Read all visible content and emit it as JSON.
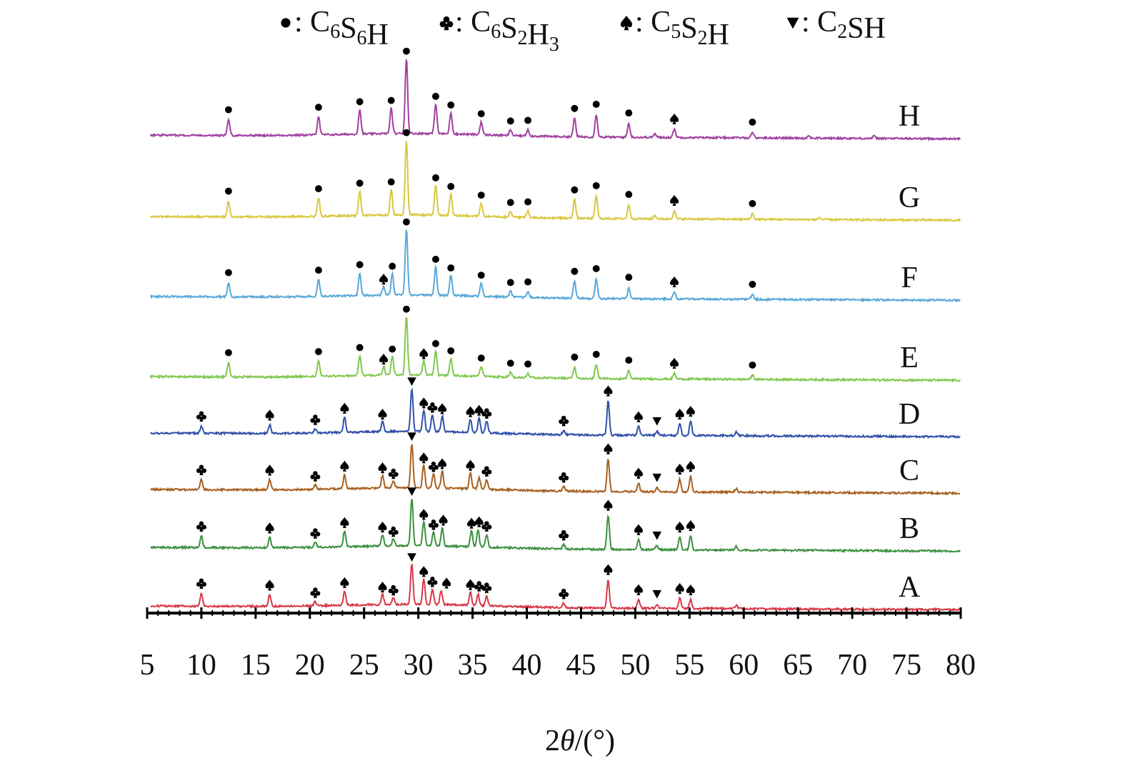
{
  "chart_data": {
    "type": "line",
    "xlabel": "2θ/(°)",
    "xlabel_parts": {
      "prefix": "2",
      "theta": "θ",
      "suffix": "/(°)"
    },
    "xlim": [
      5,
      80
    ],
    "xticks": [
      "5",
      "10",
      "15",
      "20",
      "25",
      "30",
      "35",
      "40",
      "45",
      "50",
      "55",
      "60",
      "65",
      "70",
      "75",
      "80"
    ],
    "grid": false,
    "legend_placement": "top",
    "legend": [
      {
        "id": "C6S6H",
        "marker": "circle",
        "base": "C",
        "n1": "6",
        "mid": "S",
        "n2": "6",
        "end": "H",
        "n3": ""
      },
      {
        "id": "C6S2H3",
        "marker": "club",
        "base": "C",
        "n1": "6",
        "mid": "S",
        "n2": "2",
        "end": "H",
        "n3": "3"
      },
      {
        "id": "C5S2H",
        "marker": "spade",
        "base": "C",
        "n1": "5",
        "mid": "S",
        "n2": "2",
        "end": "H",
        "n3": ""
      },
      {
        "id": "C2SH",
        "marker": "triangle-down",
        "base": "C",
        "n1": "2",
        "mid": "S",
        "n2": "",
        "end": "H",
        "n3": ""
      }
    ],
    "series": [
      {
        "name": "H",
        "color": "#a040a0",
        "peaks": [
          [
            12.5,
            22
          ],
          [
            20.8,
            26
          ],
          [
            24.6,
            34
          ],
          [
            27.5,
            36
          ],
          [
            28.9,
            105
          ],
          [
            31.6,
            42
          ],
          [
            33,
            30
          ],
          [
            35.8,
            18
          ],
          [
            38.5,
            8
          ],
          [
            40.1,
            9
          ],
          [
            44.4,
            26
          ],
          [
            46.4,
            32
          ],
          [
            49.4,
            20
          ],
          [
            51.8,
            5
          ],
          [
            53.6,
            12
          ],
          [
            60.8,
            8
          ],
          [
            66,
            3
          ],
          [
            72,
            3
          ]
        ],
        "markers": [
          [
            12.5,
            "C6S6H"
          ],
          [
            20.8,
            "C6S6H"
          ],
          [
            24.6,
            "C6S6H"
          ],
          [
            27.5,
            "C6S6H"
          ],
          [
            28.9,
            "C6S6H"
          ],
          [
            31.6,
            "C6S6H"
          ],
          [
            33,
            "C6S6H"
          ],
          [
            35.8,
            "C6S6H"
          ],
          [
            38.5,
            "C6S6H"
          ],
          [
            40.1,
            "C6S6H"
          ],
          [
            44.4,
            "C6S6H"
          ],
          [
            46.4,
            "C6S6H"
          ],
          [
            49.4,
            "C6S6H"
          ],
          [
            53.6,
            "C5S2H"
          ],
          [
            60.8,
            "C6S6H"
          ]
        ]
      },
      {
        "name": "G",
        "color": "#d8c840",
        "peaks": [
          [
            12.5,
            22
          ],
          [
            20.8,
            26
          ],
          [
            24.6,
            34
          ],
          [
            27.5,
            36
          ],
          [
            28.9,
            105
          ],
          [
            31.6,
            42
          ],
          [
            33,
            30
          ],
          [
            35.8,
            18
          ],
          [
            38.5,
            8
          ],
          [
            40.1,
            9
          ],
          [
            44.4,
            26
          ],
          [
            46.4,
            32
          ],
          [
            49.4,
            20
          ],
          [
            51.8,
            5
          ],
          [
            53.6,
            12
          ],
          [
            60.8,
            8
          ],
          [
            67,
            3
          ]
        ],
        "markers": [
          [
            12.5,
            "C6S6H"
          ],
          [
            20.8,
            "C6S6H"
          ],
          [
            24.6,
            "C6S6H"
          ],
          [
            27.5,
            "C6S6H"
          ],
          [
            28.9,
            "C6S6H"
          ],
          [
            31.6,
            "C6S6H"
          ],
          [
            33,
            "C6S6H"
          ],
          [
            35.8,
            "C6S6H"
          ],
          [
            38.5,
            "C6S6H"
          ],
          [
            40.1,
            "C6S6H"
          ],
          [
            44.4,
            "C6S6H"
          ],
          [
            46.4,
            "C6S6H"
          ],
          [
            49.4,
            "C6S6H"
          ],
          [
            53.6,
            "C5S2H"
          ],
          [
            60.8,
            "C6S6H"
          ]
        ]
      },
      {
        "name": "F",
        "color": "#5aa8d8",
        "peaks": [
          [
            12.5,
            20
          ],
          [
            20.8,
            24
          ],
          [
            24.6,
            32
          ],
          [
            26.8,
            12
          ],
          [
            27.6,
            30
          ],
          [
            28.9,
            92
          ],
          [
            31.6,
            40
          ],
          [
            33,
            28
          ],
          [
            35.8,
            18
          ],
          [
            38.5,
            8
          ],
          [
            40.1,
            9
          ],
          [
            44.4,
            24
          ],
          [
            46.4,
            28
          ],
          [
            49.4,
            16
          ],
          [
            53.6,
            10
          ],
          [
            60.8,
            7
          ]
        ],
        "markers": [
          [
            12.5,
            "C6S6H"
          ],
          [
            20.8,
            "C6S6H"
          ],
          [
            24.6,
            "C6S6H"
          ],
          [
            26.8,
            "C5S2H"
          ],
          [
            27.6,
            "C6S6H"
          ],
          [
            28.9,
            "C6S6H"
          ],
          [
            31.6,
            "C6S6H"
          ],
          [
            33,
            "C6S6H"
          ],
          [
            35.8,
            "C6S6H"
          ],
          [
            38.5,
            "C6S6H"
          ],
          [
            40.1,
            "C6S6H"
          ],
          [
            44.4,
            "C6S6H"
          ],
          [
            46.4,
            "C6S6H"
          ],
          [
            49.4,
            "C6S6H"
          ],
          [
            53.6,
            "C5S2H"
          ],
          [
            60.8,
            "C6S6H"
          ]
        ]
      },
      {
        "name": "E",
        "color": "#80c850",
        "peaks": [
          [
            12.5,
            20
          ],
          [
            20.8,
            22
          ],
          [
            24.6,
            28
          ],
          [
            26.8,
            12
          ],
          [
            27.6,
            26
          ],
          [
            28.9,
            82
          ],
          [
            30.5,
            20
          ],
          [
            31.6,
            34
          ],
          [
            33,
            24
          ],
          [
            35.8,
            14
          ],
          [
            38.5,
            7
          ],
          [
            40.1,
            6
          ],
          [
            44.4,
            16
          ],
          [
            46.4,
            20
          ],
          [
            49.4,
            12
          ],
          [
            53.6,
            8
          ],
          [
            60.8,
            6
          ]
        ],
        "markers": [
          [
            12.5,
            "C6S6H"
          ],
          [
            20.8,
            "C6S6H"
          ],
          [
            24.6,
            "C6S6H"
          ],
          [
            26.8,
            "C5S2H"
          ],
          [
            27.6,
            "C6S6H"
          ],
          [
            28.9,
            "C6S6H"
          ],
          [
            30.5,
            "C5S2H"
          ],
          [
            31.6,
            "C6S6H"
          ],
          [
            33,
            "C6S6H"
          ],
          [
            35.8,
            "C6S6H"
          ],
          [
            38.5,
            "C6S6H"
          ],
          [
            40.1,
            "C6S6H"
          ],
          [
            44.4,
            "C6S6H"
          ],
          [
            46.4,
            "C6S6H"
          ],
          [
            49.4,
            "C6S6H"
          ],
          [
            53.6,
            "C5S2H"
          ],
          [
            60.8,
            "C6S6H"
          ]
        ]
      },
      {
        "name": "D",
        "color": "#3050a8",
        "peaks": [
          [
            10,
            10
          ],
          [
            16.3,
            12
          ],
          [
            20.5,
            6
          ],
          [
            23.2,
            22
          ],
          [
            26.7,
            14
          ],
          [
            29.4,
            60
          ],
          [
            30.5,
            30
          ],
          [
            31.3,
            24
          ],
          [
            32.2,
            22
          ],
          [
            34.8,
            18
          ],
          [
            35.6,
            20
          ],
          [
            36.3,
            16
          ],
          [
            43.4,
            6
          ],
          [
            47.5,
            48
          ],
          [
            50.3,
            12
          ],
          [
            52,
            6
          ],
          [
            54.1,
            16
          ],
          [
            55.1,
            20
          ],
          [
            59.3,
            5
          ]
        ],
        "markers": [
          [
            10,
            "C6S2H3"
          ],
          [
            16.3,
            "C5S2H"
          ],
          [
            20.5,
            "C6S2H3"
          ],
          [
            23.2,
            "C5S2H"
          ],
          [
            26.7,
            "C5S2H"
          ],
          [
            29.4,
            "C2SH"
          ],
          [
            30.5,
            "C5S2H"
          ],
          [
            31.3,
            "C6S2H3"
          ],
          [
            32.2,
            "C5S2H"
          ],
          [
            34.8,
            "C5S2H"
          ],
          [
            35.6,
            "C5S2H"
          ],
          [
            36.3,
            "C6S2H3"
          ],
          [
            43.4,
            "C6S2H3"
          ],
          [
            47.5,
            "C5S2H"
          ],
          [
            50.3,
            "C5S2H"
          ],
          [
            52,
            "C2SH"
          ],
          [
            54.1,
            "C5S2H"
          ],
          [
            55.1,
            "C5S2H"
          ]
        ]
      },
      {
        "name": "C",
        "color": "#a86020",
        "peaks": [
          [
            10,
            14
          ],
          [
            16.3,
            14
          ],
          [
            20.5,
            6
          ],
          [
            23.2,
            20
          ],
          [
            26.7,
            18
          ],
          [
            27.7,
            10
          ],
          [
            29.4,
            62
          ],
          [
            30.5,
            32
          ],
          [
            31.4,
            20
          ],
          [
            32.2,
            24
          ],
          [
            34.8,
            22
          ],
          [
            35.6,
            16
          ],
          [
            36.3,
            14
          ],
          [
            43.4,
            6
          ],
          [
            47.5,
            46
          ],
          [
            50.3,
            12
          ],
          [
            52,
            6
          ],
          [
            54.1,
            18
          ],
          [
            55.1,
            22
          ],
          [
            59.3,
            5
          ]
        ],
        "markers": [
          [
            10,
            "C6S2H3"
          ],
          [
            16.3,
            "C5S2H"
          ],
          [
            20.5,
            "C6S2H3"
          ],
          [
            23.2,
            "C5S2H"
          ],
          [
            26.7,
            "C5S2H"
          ],
          [
            27.7,
            "C6S2H3"
          ],
          [
            29.4,
            "C2SH"
          ],
          [
            30.5,
            "C5S2H"
          ],
          [
            31.4,
            "C6S2H3"
          ],
          [
            32.2,
            "C5S2H"
          ],
          [
            34.8,
            "C5S2H"
          ],
          [
            36.3,
            "C6S2H3"
          ],
          [
            43.4,
            "C6S2H3"
          ],
          [
            47.5,
            "C5S2H"
          ],
          [
            50.3,
            "C5S2H"
          ],
          [
            52,
            "C2SH"
          ],
          [
            54.1,
            "C5S2H"
          ],
          [
            55.1,
            "C5S2H"
          ]
        ]
      },
      {
        "name": "B",
        "color": "#3c9040",
        "peaks": [
          [
            10,
            16
          ],
          [
            16.3,
            14
          ],
          [
            20.5,
            7
          ],
          [
            23.2,
            22
          ],
          [
            26.7,
            16
          ],
          [
            27.7,
            10
          ],
          [
            29.4,
            66
          ],
          [
            30.5,
            34
          ],
          [
            31.4,
            20
          ],
          [
            32.2,
            26
          ],
          [
            34.9,
            22
          ],
          [
            35.5,
            24
          ],
          [
            36.3,
            18
          ],
          [
            43.4,
            6
          ],
          [
            47.5,
            48
          ],
          [
            50.3,
            14
          ],
          [
            52,
            6
          ],
          [
            54.1,
            18
          ],
          [
            55.1,
            20
          ],
          [
            59.3,
            5
          ]
        ],
        "markers": [
          [
            10,
            "C6S2H3"
          ],
          [
            16.3,
            "C5S2H"
          ],
          [
            20.5,
            "C6S2H3"
          ],
          [
            23.2,
            "C5S2H"
          ],
          [
            26.7,
            "C5S2H"
          ],
          [
            27.7,
            "C6S2H3"
          ],
          [
            29.4,
            "C2SH"
          ],
          [
            30.5,
            "C5S2H"
          ],
          [
            31.4,
            "C6S2H3"
          ],
          [
            32.3,
            "C5S2H"
          ],
          [
            34.9,
            "C5S2H"
          ],
          [
            35.6,
            "C5S2H"
          ],
          [
            36.3,
            "C6S2H3"
          ],
          [
            43.4,
            "C6S2H3"
          ],
          [
            47.5,
            "C5S2H"
          ],
          [
            50.3,
            "C5S2H"
          ],
          [
            52,
            "C2SH"
          ],
          [
            54.1,
            "C5S2H"
          ],
          [
            55.1,
            "C5S2H"
          ]
        ]
      },
      {
        "name": "A",
        "color": "#d83848",
        "peaks": [
          [
            10,
            18
          ],
          [
            16.3,
            16
          ],
          [
            20.5,
            6
          ],
          [
            23.2,
            20
          ],
          [
            26.7,
            14
          ],
          [
            27.7,
            10
          ],
          [
            29.4,
            56
          ],
          [
            30.5,
            36
          ],
          [
            31.3,
            22
          ],
          [
            32.1,
            20
          ],
          [
            34.8,
            18
          ],
          [
            35.5,
            16
          ],
          [
            36.3,
            14
          ],
          [
            43.4,
            6
          ],
          [
            47.5,
            40
          ],
          [
            50.3,
            12
          ],
          [
            52,
            6
          ],
          [
            54.1,
            14
          ],
          [
            55.1,
            12
          ],
          [
            59.3,
            5
          ]
        ],
        "markers": [
          [
            10,
            "C6S2H3"
          ],
          [
            16.3,
            "C5S2H"
          ],
          [
            20.5,
            "C6S2H3"
          ],
          [
            23.2,
            "C5S2H"
          ],
          [
            26.7,
            "C5S2H"
          ],
          [
            27.7,
            "C6S2H3"
          ],
          [
            29.4,
            "C2SH"
          ],
          [
            30.5,
            "C5S2H"
          ],
          [
            31.3,
            "C6S2H3"
          ],
          [
            32.6,
            "C5S2H"
          ],
          [
            34.8,
            "C5S2H"
          ],
          [
            35.6,
            "C6S2H3"
          ],
          [
            36.3,
            "C6S2H3"
          ],
          [
            43.4,
            "C6S2H3"
          ],
          [
            47.5,
            "C5S2H"
          ],
          [
            50.3,
            "C5S2H"
          ],
          [
            52,
            "C2SH"
          ],
          [
            54.1,
            "C5S2H"
          ],
          [
            55.1,
            "C5S2H"
          ]
        ]
      }
    ]
  }
}
